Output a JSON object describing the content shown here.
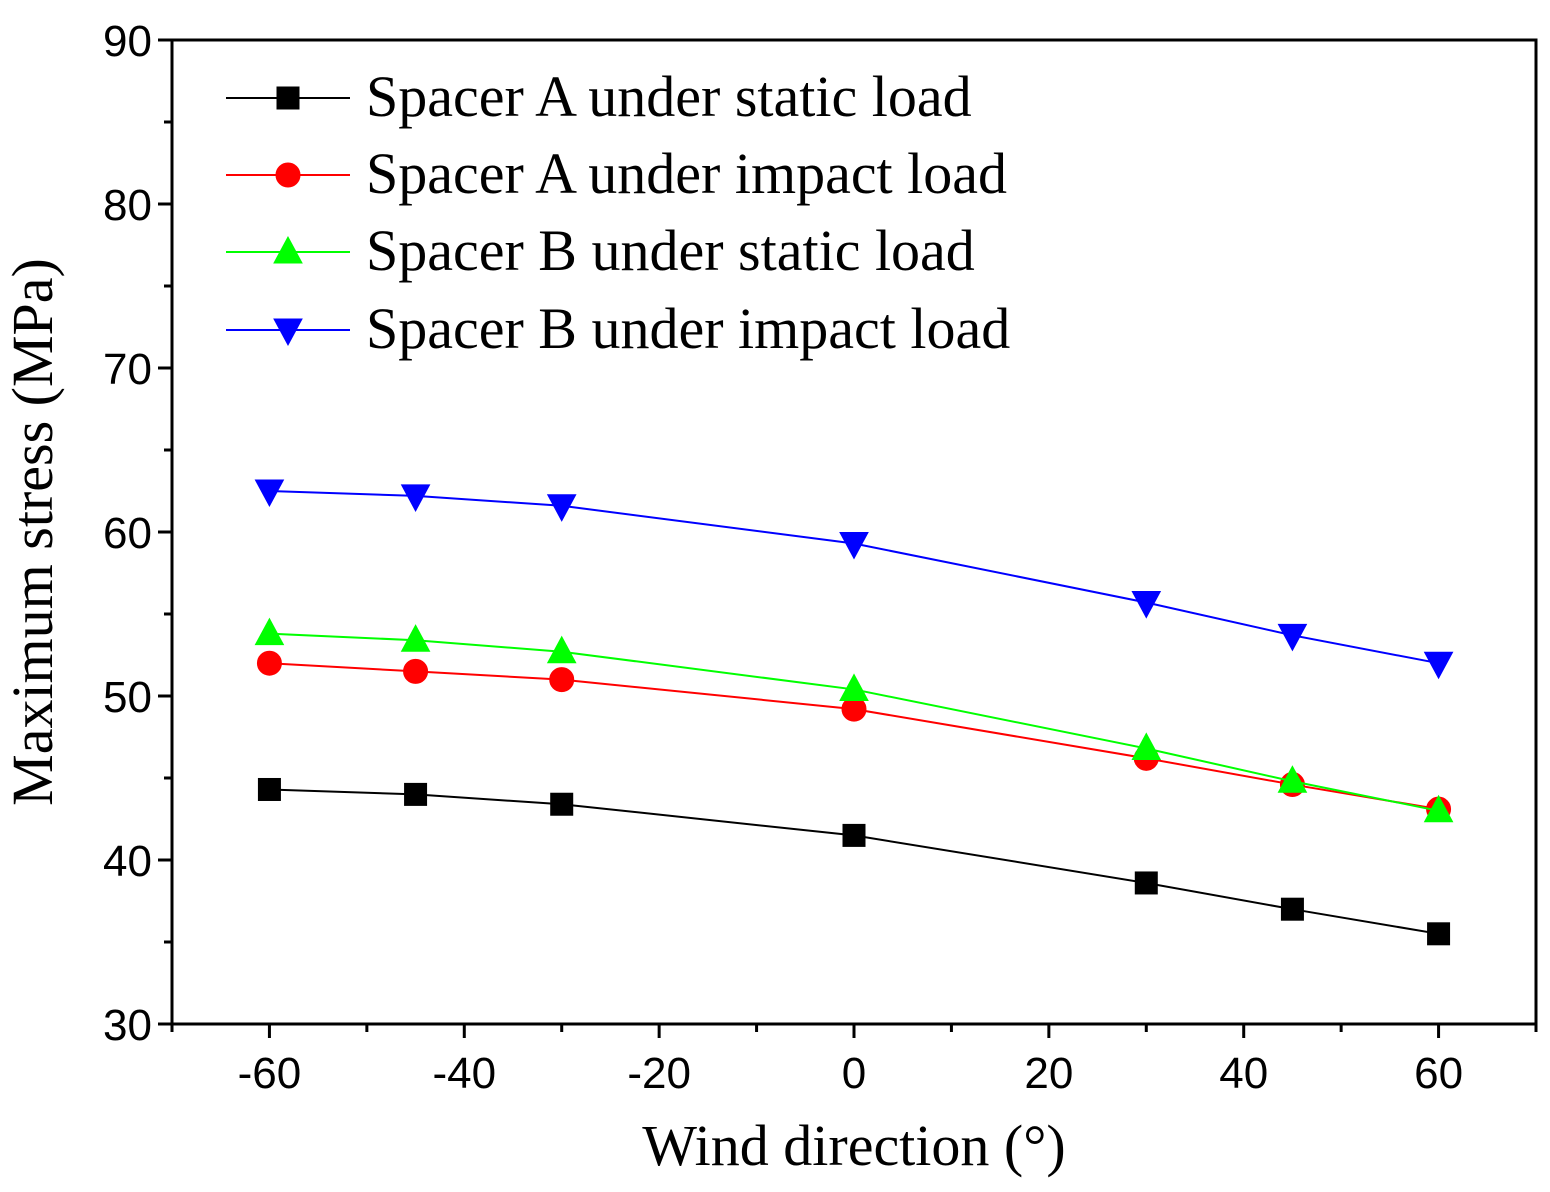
{
  "chart_data": {
    "type": "line",
    "title": "",
    "xlabel": "Wind direction (°)",
    "ylabel": "Maximum stress (MPa)",
    "xlim": [
      -70,
      70
    ],
    "ylim": [
      30,
      90
    ],
    "x_ticks": [
      -60,
      -40,
      -20,
      0,
      20,
      40,
      60
    ],
    "x_tick_labels": [
      "-60",
      "-40",
      "-20",
      "0",
      "20",
      "40",
      "60"
    ],
    "y_ticks": [
      30,
      40,
      50,
      60,
      70,
      80,
      90
    ],
    "y_tick_labels": [
      "30",
      "40",
      "50",
      "60",
      "70",
      "80",
      "90"
    ],
    "grid": false,
    "legend_position": "top-left",
    "x": [
      -60,
      -45,
      -30,
      0,
      30,
      45,
      60
    ],
    "series": [
      {
        "name": "Spacer A under static load",
        "marker": "square",
        "color": "#000000",
        "values": [
          44.3,
          44.0,
          43.4,
          41.5,
          38.6,
          37.0,
          35.5
        ]
      },
      {
        "name": "Spacer A under impact load",
        "marker": "circle",
        "color": "#ff0000",
        "values": [
          52.0,
          51.5,
          51.0,
          49.2,
          46.2,
          44.6,
          43.1
        ]
      },
      {
        "name": "Spacer B under static load",
        "marker": "triangle-up",
        "color": "#00ff00",
        "values": [
          53.8,
          53.4,
          52.7,
          50.4,
          46.8,
          44.8,
          43.0
        ]
      },
      {
        "name": "Spacer B under impact load",
        "marker": "triangle-down",
        "color": "#0000ff",
        "values": [
          62.5,
          62.2,
          61.6,
          59.3,
          55.7,
          53.7,
          52.0
        ]
      }
    ]
  }
}
